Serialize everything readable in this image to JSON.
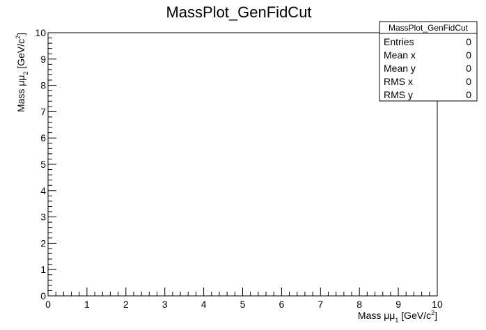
{
  "chart_data": {
    "type": "heatmap",
    "title": "MassPlot_GenFidCut",
    "xlabel": {
      "main": "Mass μμ",
      "sub": "1",
      "unit_open": " [GeV/c",
      "sup": "2",
      "unit_close": "]"
    },
    "ylabel": {
      "main": "Mass μμ",
      "sub": "2",
      "unit_open": " [GeV/c",
      "sup": "2",
      "unit_close": "]"
    },
    "xlim": [
      0,
      10
    ],
    "ylim": [
      0,
      10
    ],
    "xticks": [
      "0",
      "1",
      "2",
      "3",
      "4",
      "5",
      "6",
      "7",
      "8",
      "9",
      "10"
    ],
    "yticks": [
      "0",
      "1",
      "2",
      "3",
      "4",
      "5",
      "6",
      "7",
      "8",
      "9",
      "10"
    ],
    "values": [],
    "grid": false,
    "stats_box": {
      "title": "MassPlot_GenFidCut",
      "rows": [
        {
          "label": "Entries",
          "value": "0"
        },
        {
          "label": "Mean x",
          "value": "0"
        },
        {
          "label": "Mean y",
          "value": "0"
        },
        {
          "label": "RMS x",
          "value": "0"
        },
        {
          "label": "RMS y",
          "value": "0"
        }
      ],
      "placement": "top-right"
    }
  }
}
